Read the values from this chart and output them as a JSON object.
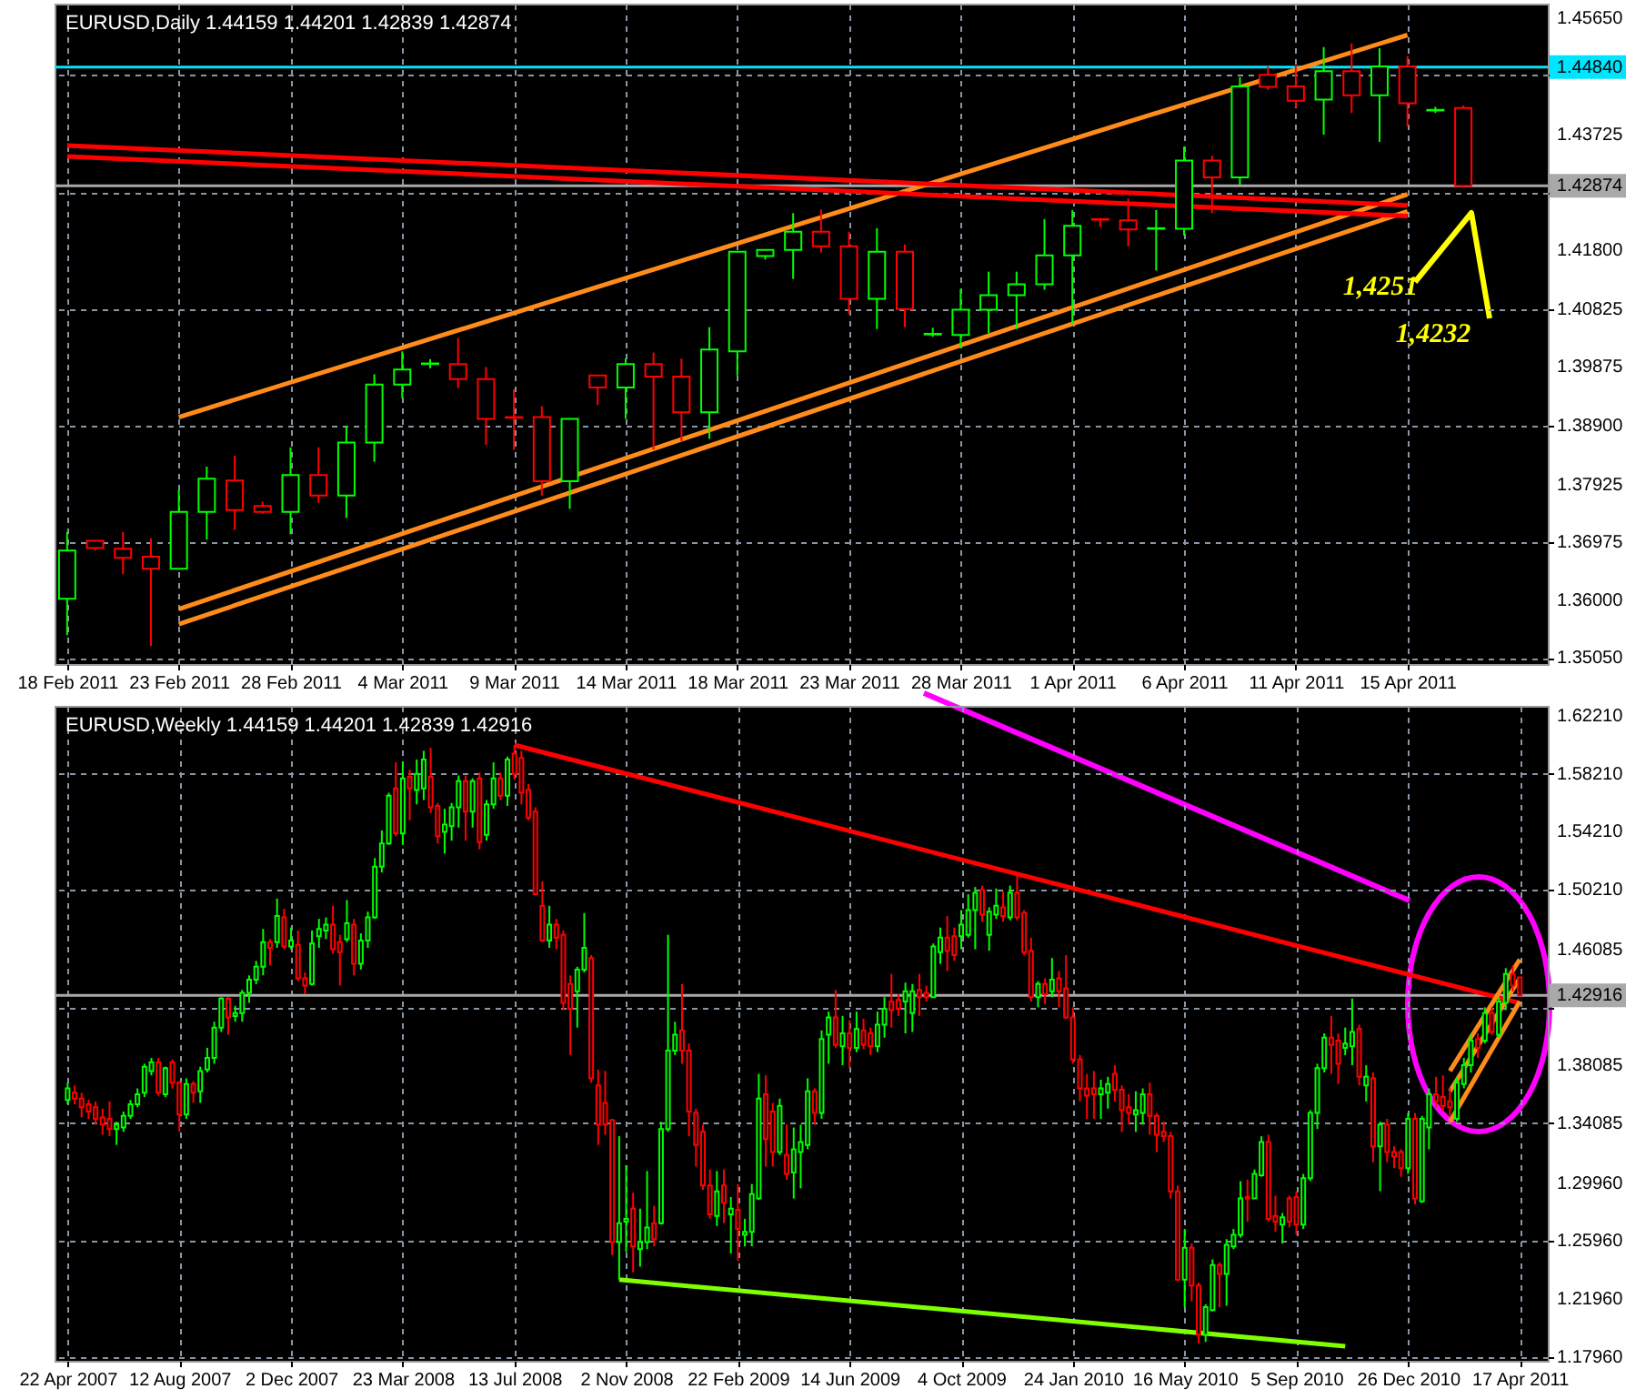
{
  "chart_data": [
    {
      "type": "candlestick",
      "title": "EURUSD,Daily  1.44159 1.44201 1.42839 1.42874",
      "categories": [
        "18 Feb 2011",
        null,
        null,
        null,
        "23 Feb 2011",
        null,
        null,
        null,
        "28 Feb 2011",
        null,
        null,
        null,
        "4 Mar 2011",
        null,
        null,
        null,
        "9 Mar 2011",
        null,
        null,
        null,
        "14 Mar 2011",
        null,
        null,
        null,
        "18 Mar 2011",
        null,
        null,
        null,
        "23 Mar 2011",
        null,
        null,
        null,
        "28 Mar 2011",
        null,
        null,
        null,
        "1 Apr 2011",
        null,
        null,
        null,
        "6 Apr 2011",
        null,
        null,
        null,
        "11 Apr 2011",
        null,
        null,
        null,
        "15 Apr 2011",
        null,
        null
      ],
      "ohlc": [
        [
          1.3603,
          1.3714,
          1.3543,
          1.3683
        ],
        [
          1.3699,
          1.3699,
          1.3683,
          1.3687
        ],
        [
          1.3686,
          1.3714,
          1.3644,
          1.3671
        ],
        [
          1.3673,
          1.3703,
          1.3525,
          1.3653
        ],
        [
          1.3653,
          1.3784,
          1.3653,
          1.3747
        ],
        [
          1.3747,
          1.3822,
          1.3701,
          1.3802
        ],
        [
          1.3799,
          1.384,
          1.3717,
          1.375
        ],
        [
          1.3757,
          1.3764,
          1.3744,
          1.3747
        ],
        [
          1.3747,
          1.3854,
          1.371,
          1.3808
        ],
        [
          1.3808,
          1.3854,
          1.3762,
          1.3774
        ],
        [
          1.3774,
          1.3889,
          1.3737,
          1.3862
        ],
        [
          1.3862,
          1.3975,
          1.383,
          1.3958
        ],
        [
          1.3958,
          1.4013,
          1.3935,
          1.3983
        ],
        [
          1.3992,
          1.4,
          1.3985,
          1.3993
        ],
        [
          1.3992,
          1.4035,
          1.3952,
          1.3967
        ],
        [
          1.3967,
          1.3987,
          1.3858,
          1.3901
        ],
        [
          1.3904,
          1.395,
          1.385,
          1.3903
        ],
        [
          1.3904,
          1.3922,
          1.3774,
          1.3798
        ],
        [
          1.3798,
          1.3901,
          1.3752,
          1.3901
        ],
        [
          1.3973,
          1.3973,
          1.3924,
          1.3953
        ],
        [
          1.3953,
          1.4001,
          1.3901,
          1.3992
        ],
        [
          1.3992,
          1.4011,
          1.385,
          1.3971
        ],
        [
          1.3971,
          1.4001,
          1.3864,
          1.3912
        ],
        [
          1.3912,
          1.4053,
          1.3868,
          1.4016
        ],
        [
          1.4013,
          1.4178,
          1.3973,
          1.4178
        ],
        [
          1.4171,
          1.4181,
          1.4165,
          1.4181
        ],
        [
          1.4181,
          1.4242,
          1.4133,
          1.4211
        ],
        [
          1.4211,
          1.4248,
          1.4177,
          1.4187
        ],
        [
          1.4187,
          1.4211,
          1.4075,
          1.41
        ],
        [
          1.41,
          1.4217,
          1.405,
          1.4178
        ],
        [
          1.4178,
          1.419,
          1.4053,
          1.4083
        ],
        [
          1.4041,
          1.4052,
          1.4037,
          1.4042
        ],
        [
          1.404,
          1.4116,
          1.4018,
          1.4082
        ],
        [
          1.4082,
          1.4145,
          1.4043,
          1.4106
        ],
        [
          1.4106,
          1.4145,
          1.405,
          1.4124
        ],
        [
          1.4124,
          1.4232,
          1.4115,
          1.4172
        ],
        [
          1.4172,
          1.4247,
          1.4058,
          1.4221
        ],
        [
          1.4232,
          1.4232,
          1.4219,
          1.4231
        ],
        [
          1.423,
          1.4266,
          1.4187,
          1.4215
        ],
        [
          1.4216,
          1.4247,
          1.4147,
          1.4217
        ],
        [
          1.4216,
          1.4352,
          1.4205,
          1.4329
        ],
        [
          1.4329,
          1.4337,
          1.4242,
          1.4301
        ],
        [
          1.4301,
          1.4467,
          1.4289,
          1.4452
        ],
        [
          1.4471,
          1.4485,
          1.4446,
          1.4451
        ],
        [
          1.4452,
          1.4487,
          1.4417,
          1.4428
        ],
        [
          1.443,
          1.4517,
          1.4372,
          1.4477
        ],
        [
          1.4477,
          1.4523,
          1.4408,
          1.4437
        ],
        [
          1.4437,
          1.4515,
          1.436,
          1.4485
        ],
        [
          1.4485,
          1.4502,
          1.4386,
          1.4424
        ],
        [
          1.4412,
          1.4418,
          1.4408,
          1.4413
        ],
        [
          1.44159,
          1.44201,
          1.42839,
          1.42874
        ]
      ],
      "colors": [
        "#00ff00",
        "#ff0000",
        "#ff0000",
        "#ff0000",
        "#00ff00",
        "#00ff00",
        "#ff0000",
        "#ff0000",
        "#00ff00",
        "#ff0000",
        "#00ff00",
        "#00ff00",
        "#00ff00",
        "#00ff00",
        "#ff0000",
        "#ff0000",
        "#ff0000",
        "#ff0000",
        "#00ff00",
        "#ff0000",
        "#00ff00",
        "#ff0000",
        "#ff0000",
        "#00ff00",
        "#00ff00",
        "#00ff00",
        "#00ff00",
        "#ff0000",
        "#ff0000",
        "#00ff00",
        "#ff0000",
        "#00ff00",
        "#00ff00",
        "#00ff00",
        "#00ff00",
        "#00ff00",
        "#00ff00",
        "#ff0000",
        "#ff0000",
        "#00ff00",
        "#00ff00",
        "#ff0000",
        "#00ff00",
        "#ff0000",
        "#ff0000",
        "#00ff00",
        "#ff0000",
        "#00ff00",
        "#ff0000",
        "#00ff00",
        "#ff0000"
      ],
      "ylim": [
        1.3495,
        1.4589
      ],
      "yticks": [
        {
          "value": 1.3505,
          "label": "1.35050"
        },
        {
          "value": 1.36,
          "label": "1.36000"
        },
        {
          "value": 1.36975,
          "label": "1.36975"
        },
        {
          "value": 1.37925,
          "label": "1.37925"
        },
        {
          "value": 1.389,
          "label": "1.38900"
        },
        {
          "value": 1.39875,
          "label": "1.39875"
        },
        {
          "value": 1.40825,
          "label": "1.40825"
        },
        {
          "value": 1.418,
          "label": "1.41800"
        },
        {
          "value": 1.4275,
          "label": null
        },
        {
          "value": 1.43725,
          "label": "1.43725"
        },
        {
          "value": 1.447,
          "label": null
        },
        {
          "value": 1.4565,
          "label": "1.45650"
        }
      ],
      "grid": true,
      "ref_lines": [
        {
          "axis": "y",
          "value": 1.4484,
          "label": "1.44840",
          "color": "#00e5ff"
        },
        {
          "axis": "y",
          "value": 1.42874,
          "label": "1.42874",
          "color": "#a9a9a9"
        }
      ],
      "series": [
        {
          "type": "line",
          "color": "#ff8c1a",
          "x": [
            "23 Feb 2011",
            "15 Apr 2011"
          ],
          "values": [
            1.3904,
            1.4537
          ]
        },
        {
          "type": "line",
          "color": "#ff8c1a",
          "x": [
            "23 Feb 2011",
            "15 Apr 2011"
          ],
          "values": [
            1.3586,
            1.4273
          ]
        },
        {
          "type": "line",
          "color": "#ff8c1a",
          "x": [
            "23 Feb 2011",
            "15 Apr 2011"
          ],
          "values": [
            1.3561,
            1.4245
          ]
        },
        {
          "type": "line",
          "color": "#ff0000",
          "x": [
            "18 Feb 2011",
            "15 Apr 2011"
          ],
          "values": [
            1.4354,
            1.4255
          ]
        },
        {
          "type": "line",
          "color": "#ff0000",
          "x": [
            "18 Feb 2011",
            "15 Apr 2011"
          ],
          "values": [
            1.4336,
            1.4237
          ]
        }
      ],
      "annotations": [
        "1,4251",
        "1,4232"
      ]
    },
    {
      "type": "candlestick",
      "title": "EURUSD,Weekly  1.44159 1.44201 1.42839 1.42916",
      "x": [
        "2007-04-22",
        "2007-04-29",
        "2007-05-06",
        "2007-05-13",
        "2007-05-20",
        "2007-05-27",
        "2007-06-03",
        "2007-06-10",
        "2007-06-17",
        "2007-06-24",
        "2007-07-01",
        "2007-07-08",
        "2007-07-15",
        "2007-07-22",
        "2007-07-29",
        "2007-08-05",
        "2007-08-12",
        "2007-08-19",
        "2007-08-26",
        "2007-09-02",
        "2007-09-09",
        "2007-09-16",
        "2007-09-23",
        "2007-09-30",
        "2007-10-07",
        "2007-10-14",
        "2007-10-21",
        "2007-10-28",
        "2007-11-04",
        "2007-11-11",
        "2007-11-18",
        "2007-11-25",
        "2007-12-02",
        "2007-12-09",
        "2007-12-16",
        "2007-12-23",
        "2007-12-30",
        "2008-01-06",
        "2008-01-13",
        "2008-01-20",
        "2008-01-27",
        "2008-02-03",
        "2008-02-10",
        "2008-02-17",
        "2008-02-24",
        "2008-03-02",
        "2008-03-09",
        "2008-03-16",
        "2008-03-23",
        "2008-03-30",
        "2008-04-06",
        "2008-04-13",
        "2008-04-20",
        "2008-04-27",
        "2008-05-04",
        "2008-05-11",
        "2008-05-18",
        "2008-05-25",
        "2008-06-01",
        "2008-06-08",
        "2008-06-15",
        "2008-06-22",
        "2008-06-29",
        "2008-07-06",
        "2008-07-13",
        "2008-07-20",
        "2008-07-27",
        "2008-08-03",
        "2008-08-10",
        "2008-08-17",
        "2008-08-24",
        "2008-08-31",
        "2008-09-07",
        "2008-09-14",
        "2008-09-21",
        "2008-09-28",
        "2008-10-05",
        "2008-10-12",
        "2008-10-19",
        "2008-10-26",
        "2008-11-02",
        "2008-11-09",
        "2008-11-16",
        "2008-11-23",
        "2008-11-30",
        "2008-12-07",
        "2008-12-14",
        "2008-12-21",
        "2008-12-28",
        "2009-01-04",
        "2009-01-11",
        "2009-01-18",
        "2009-01-25",
        "2009-02-01",
        "2009-02-08",
        "2009-02-15",
        "2009-02-22",
        "2009-03-01",
        "2009-03-08",
        "2009-03-15",
        "2009-03-22",
        "2009-03-29",
        "2009-04-05",
        "2009-04-12",
        "2009-04-19",
        "2009-04-26",
        "2009-05-03",
        "2009-05-10",
        "2009-05-17",
        "2009-05-24",
        "2009-05-31",
        "2009-06-07",
        "2009-06-14",
        "2009-06-21",
        "2009-06-28",
        "2009-07-05",
        "2009-07-12",
        "2009-07-19",
        "2009-07-26",
        "2009-08-02",
        "2009-08-09",
        "2009-08-16",
        "2009-08-23",
        "2009-08-30",
        "2009-09-06",
        "2009-09-13",
        "2009-09-20",
        "2009-09-27",
        "2009-10-04",
        "2009-10-11",
        "2009-10-18",
        "2009-10-25",
        "2009-11-01",
        "2009-11-08",
        "2009-11-15",
        "2009-11-22",
        "2009-11-29",
        "2009-12-06",
        "2009-12-13",
        "2009-12-20",
        "2009-12-27",
        "2010-01-03",
        "2010-01-10",
        "2010-01-17",
        "2010-01-24",
        "2010-01-31",
        "2010-02-07",
        "2010-02-14",
        "2010-02-21",
        "2010-02-28",
        "2010-03-07",
        "2010-03-14",
        "2010-03-21",
        "2010-03-28",
        "2010-04-04",
        "2010-04-11",
        "2010-04-18",
        "2010-04-25",
        "2010-05-02",
        "2010-05-09",
        "2010-05-16",
        "2010-05-23",
        "2010-05-30",
        "2010-06-06",
        "2010-06-13",
        "2010-06-20",
        "2010-06-27",
        "2010-07-04",
        "2010-07-11",
        "2010-07-18",
        "2010-07-25",
        "2010-08-01",
        "2010-08-08",
        "2010-08-15",
        "2010-08-22",
        "2010-08-29",
        "2010-09-05",
        "2010-09-12",
        "2010-09-19",
        "2010-09-26",
        "2010-10-03",
        "2010-10-10",
        "2010-10-17",
        "2010-10-24",
        "2010-10-31",
        "2010-11-07",
        "2010-11-14",
        "2010-11-21",
        "2010-11-28",
        "2010-12-05",
        "2010-12-12",
        "2010-12-19",
        "2010-12-26",
        "2011-01-02",
        "2011-01-09",
        "2011-01-16",
        "2011-01-23",
        "2011-01-30",
        "2011-02-06",
        "2011-02-13",
        "2011-02-20",
        "2011-02-27",
        "2011-03-06",
        "2011-03-13",
        "2011-03-20",
        "2011-03-27",
        "2011-04-03",
        "2011-04-10",
        "2011-04-17"
      ],
      "ohlc": [
        [
          1.357,
          1.369,
          1.354,
          1.365
        ],
        [
          1.362,
          1.367,
          1.354,
          1.358
        ],
        [
          1.358,
          1.362,
          1.345,
          1.352
        ],
        [
          1.354,
          1.357,
          1.344,
          1.349
        ],
        [
          1.352,
          1.356,
          1.34,
          1.344
        ],
        [
          1.345,
          1.351,
          1.333,
          1.34
        ],
        [
          1.344,
          1.356,
          1.332,
          1.337
        ],
        [
          1.337,
          1.342,
          1.326,
          1.34
        ],
        [
          1.338,
          1.349,
          1.335,
          1.346
        ],
        [
          1.346,
          1.357,
          1.344,
          1.354
        ],
        [
          1.354,
          1.365,
          1.352,
          1.361
        ],
        [
          1.362,
          1.382,
          1.359,
          1.38
        ],
        [
          1.377,
          1.386,
          1.374,
          1.383
        ],
        [
          1.383,
          1.386,
          1.36,
          1.362
        ],
        [
          1.361,
          1.38,
          1.359,
          1.379
        ],
        [
          1.383,
          1.385,
          1.365,
          1.369
        ],
        [
          1.369,
          1.37,
          1.335,
          1.347
        ],
        [
          1.347,
          1.372,
          1.344,
          1.368
        ],
        [
          1.368,
          1.37,
          1.355,
          1.362
        ],
        [
          1.363,
          1.38,
          1.355,
          1.377
        ],
        [
          1.378,
          1.393,
          1.376,
          1.386
        ],
        [
          1.386,
          1.411,
          1.382,
          1.407
        ],
        [
          1.407,
          1.428,
          1.404,
          1.427
        ],
        [
          1.427,
          1.428,
          1.402,
          1.414
        ],
        [
          1.415,
          1.422,
          1.411,
          1.417
        ],
        [
          1.417,
          1.433,
          1.411,
          1.431
        ],
        [
          1.431,
          1.443,
          1.424,
          1.44
        ],
        [
          1.44,
          1.453,
          1.437,
          1.449
        ],
        [
          1.449,
          1.475,
          1.443,
          1.466
        ],
        [
          1.466,
          1.468,
          1.45,
          1.462
        ],
        [
          1.466,
          1.496,
          1.462,
          1.484
        ],
        [
          1.483,
          1.489,
          1.461,
          1.463
        ],
        [
          1.463,
          1.476,
          1.461,
          1.467
        ],
        [
          1.464,
          1.474,
          1.439,
          1.441
        ],
        [
          1.441,
          1.445,
          1.43,
          1.436
        ],
        [
          1.437,
          1.474,
          1.436,
          1.465
        ],
        [
          1.47,
          1.482,
          1.462,
          1.475
        ],
        [
          1.474,
          1.483,
          1.468,
          1.478
        ],
        [
          1.478,
          1.491,
          1.458,
          1.461
        ],
        [
          1.466,
          1.471,
          1.436,
          1.459
        ],
        [
          1.468,
          1.495,
          1.466,
          1.479
        ],
        [
          1.478,
          1.482,
          1.443,
          1.451
        ],
        [
          1.451,
          1.472,
          1.447,
          1.467
        ],
        [
          1.467,
          1.487,
          1.462,
          1.483
        ],
        [
          1.483,
          1.524,
          1.482,
          1.518
        ],
        [
          1.518,
          1.543,
          1.514,
          1.534
        ],
        [
          1.534,
          1.569,
          1.533,
          1.567
        ],
        [
          1.572,
          1.59,
          1.539,
          1.541
        ],
        [
          1.541,
          1.59,
          1.533,
          1.579
        ],
        [
          1.58,
          1.585,
          1.55,
          1.572
        ],
        [
          1.571,
          1.592,
          1.561,
          1.582
        ],
        [
          1.572,
          1.598,
          1.564,
          1.592
        ],
        [
          1.58,
          1.6,
          1.555,
          1.559
        ],
        [
          1.56,
          1.562,
          1.534,
          1.539
        ],
        [
          1.542,
          1.558,
          1.527,
          1.547
        ],
        [
          1.546,
          1.562,
          1.536,
          1.559
        ],
        [
          1.559,
          1.581,
          1.545,
          1.577
        ],
        [
          1.577,
          1.581,
          1.536,
          1.556
        ],
        [
          1.556,
          1.579,
          1.545,
          1.577
        ],
        [
          1.579,
          1.583,
          1.53,
          1.535
        ],
        [
          1.54,
          1.564,
          1.536,
          1.561
        ],
        [
          1.561,
          1.59,
          1.558,
          1.579
        ],
        [
          1.579,
          1.583,
          1.564,
          1.567
        ],
        [
          1.567,
          1.594,
          1.56,
          1.592
        ],
        [
          1.596,
          1.602,
          1.578,
          1.582
        ],
        [
          1.593,
          1.598,
          1.561,
          1.569
        ],
        [
          1.571,
          1.575,
          1.55,
          1.552
        ],
        [
          1.556,
          1.559,
          1.499,
          1.499
        ],
        [
          1.491,
          1.508,
          1.466,
          1.467
        ],
        [
          1.467,
          1.491,
          1.462,
          1.478
        ],
        [
          1.478,
          1.482,
          1.461,
          1.469
        ],
        [
          1.471,
          1.474,
          1.419,
          1.424
        ],
        [
          1.437,
          1.443,
          1.388,
          1.42
        ],
        [
          1.432,
          1.449,
          1.407,
          1.447
        ],
        [
          1.447,
          1.486,
          1.445,
          1.462
        ],
        [
          1.455,
          1.457,
          1.369,
          1.372
        ],
        [
          1.367,
          1.378,
          1.326,
          1.34
        ],
        [
          1.355,
          1.377,
          1.333,
          1.34
        ],
        [
          1.343,
          1.344,
          1.25,
          1.259
        ],
        [
          1.259,
          1.332,
          1.233,
          1.272
        ],
        [
          1.273,
          1.312,
          1.252,
          1.275
        ],
        [
          1.282,
          1.293,
          1.238,
          1.256
        ],
        [
          1.254,
          1.282,
          1.242,
          1.259
        ],
        [
          1.259,
          1.308,
          1.254,
          1.269
        ],
        [
          1.272,
          1.284,
          1.256,
          1.261
        ],
        [
          1.272,
          1.342,
          1.271,
          1.337
        ],
        [
          1.337,
          1.471,
          1.335,
          1.391
        ],
        [
          1.391,
          1.411,
          1.388,
          1.402
        ],
        [
          1.405,
          1.437,
          1.382,
          1.391
        ],
        [
          1.391,
          1.396,
          1.332,
          1.349
        ],
        [
          1.348,
          1.351,
          1.311,
          1.326
        ],
        [
          1.335,
          1.34,
          1.295,
          1.298
        ],
        [
          1.298,
          1.309,
          1.275,
          1.278
        ],
        [
          1.277,
          1.308,
          1.27,
          1.294
        ],
        [
          1.298,
          1.309,
          1.272,
          1.286
        ],
        [
          1.278,
          1.29,
          1.251,
          1.282
        ],
        [
          1.281,
          1.299,
          1.246,
          1.268
        ],
        [
          1.264,
          1.275,
          1.256,
          1.266
        ],
        [
          1.266,
          1.299,
          1.256,
          1.292
        ],
        [
          1.289,
          1.375,
          1.288,
          1.358
        ],
        [
          1.361,
          1.374,
          1.311,
          1.33
        ],
        [
          1.349,
          1.355,
          1.311,
          1.321
        ],
        [
          1.321,
          1.358,
          1.319,
          1.353
        ],
        [
          1.319,
          1.34,
          1.302,
          1.306
        ],
        [
          1.307,
          1.338,
          1.289,
          1.323
        ],
        [
          1.321,
          1.34,
          1.296,
          1.328
        ],
        [
          1.326,
          1.372,
          1.323,
          1.363
        ],
        [
          1.363,
          1.365,
          1.34,
          1.348
        ],
        [
          1.348,
          1.405,
          1.344,
          1.399
        ],
        [
          1.402,
          1.418,
          1.382,
          1.414
        ],
        [
          1.414,
          1.433,
          1.393,
          1.395
        ],
        [
          1.394,
          1.415,
          1.381,
          1.403
        ],
        [
          1.403,
          1.412,
          1.379,
          1.393
        ],
        [
          1.393,
          1.418,
          1.39,
          1.406
        ],
        [
          1.405,
          1.413,
          1.392,
          1.395
        ],
        [
          1.403,
          1.407,
          1.388,
          1.394
        ],
        [
          1.394,
          1.418,
          1.39,
          1.409
        ],
        [
          1.409,
          1.428,
          1.4,
          1.42
        ],
        [
          1.425,
          1.444,
          1.407,
          1.419
        ],
        [
          1.426,
          1.43,
          1.415,
          1.42
        ],
        [
          1.425,
          1.438,
          1.403,
          1.432
        ],
        [
          1.417,
          1.437,
          1.404,
          1.432
        ],
        [
          1.433,
          1.444,
          1.415,
          1.428
        ],
        [
          1.431,
          1.436,
          1.425,
          1.428
        ],
        [
          1.428,
          1.465,
          1.428,
          1.463
        ],
        [
          1.459,
          1.476,
          1.451,
          1.469
        ],
        [
          1.469,
          1.484,
          1.446,
          1.46
        ],
        [
          1.47,
          1.476,
          1.453,
          1.457
        ],
        [
          1.47,
          1.488,
          1.461,
          1.478
        ],
        [
          1.471,
          1.499,
          1.469,
          1.488
        ],
        [
          1.488,
          1.504,
          1.461,
          1.5
        ],
        [
          1.502,
          1.505,
          1.48,
          1.485
        ],
        [
          1.471,
          1.49,
          1.46,
          1.487
        ],
        [
          1.485,
          1.503,
          1.482,
          1.491
        ],
        [
          1.49,
          1.501,
          1.48,
          1.484
        ],
        [
          1.483,
          1.505,
          1.481,
          1.5
        ],
        [
          1.5,
          1.513,
          1.481,
          1.483
        ],
        [
          1.486,
          1.488,
          1.457,
          1.459
        ],
        [
          1.46,
          1.469,
          1.425,
          1.428
        ],
        [
          1.428,
          1.439,
          1.421,
          1.437
        ],
        [
          1.437,
          1.441,
          1.423,
          1.43
        ],
        [
          1.432,
          1.455,
          1.428,
          1.44
        ],
        [
          1.441,
          1.446,
          1.421,
          1.432
        ],
        [
          1.434,
          1.457,
          1.413,
          1.414
        ],
        [
          1.414,
          1.421,
          1.382,
          1.385
        ],
        [
          1.385,
          1.388,
          1.356,
          1.365
        ],
        [
          1.365,
          1.375,
          1.344,
          1.36
        ],
        [
          1.365,
          1.377,
          1.344,
          1.361
        ],
        [
          1.361,
          1.371,
          1.344,
          1.365
        ],
        [
          1.362,
          1.373,
          1.351,
          1.368
        ],
        [
          1.375,
          1.381,
          1.356,
          1.364
        ],
        [
          1.364,
          1.367,
          1.335,
          1.35
        ],
        [
          1.352,
          1.361,
          1.34,
          1.348
        ],
        [
          1.347,
          1.363,
          1.335,
          1.35
        ],
        [
          1.348,
          1.365,
          1.34,
          1.361
        ],
        [
          1.361,
          1.369,
          1.333,
          1.346
        ],
        [
          1.346,
          1.348,
          1.321,
          1.333
        ],
        [
          1.335,
          1.342,
          1.328,
          1.332
        ],
        [
          1.332,
          1.335,
          1.289,
          1.294
        ],
        [
          1.294,
          1.298,
          1.232,
          1.233
        ],
        [
          1.233,
          1.268,
          1.214,
          1.255
        ],
        [
          1.255,
          1.258,
          1.218,
          1.229
        ],
        [
          1.229,
          1.231,
          1.189,
          1.195
        ],
        [
          1.195,
          1.216,
          1.19,
          1.214
        ],
        [
          1.212,
          1.247,
          1.211,
          1.243
        ],
        [
          1.243,
          1.245,
          1.214,
          1.237
        ],
        [
          1.237,
          1.261,
          1.215,
          1.257
        ],
        [
          1.256,
          1.268,
          1.254,
          1.264
        ],
        [
          1.264,
          1.301,
          1.262,
          1.289
        ],
        [
          1.29,
          1.302,
          1.273,
          1.289
        ],
        [
          1.289,
          1.309,
          1.289,
          1.306
        ],
        [
          1.305,
          1.332,
          1.304,
          1.328
        ],
        [
          1.328,
          1.333,
          1.273,
          1.275
        ],
        [
          1.277,
          1.291,
          1.266,
          1.273
        ],
        [
          1.271,
          1.279,
          1.258,
          1.276
        ],
        [
          1.289,
          1.291,
          1.269,
          1.273
        ],
        [
          1.29,
          1.294,
          1.264,
          1.271
        ],
        [
          1.271,
          1.306,
          1.268,
          1.303
        ],
        [
          1.303,
          1.35,
          1.301,
          1.348
        ],
        [
          1.348,
          1.382,
          1.337,
          1.379
        ],
        [
          1.379,
          1.403,
          1.376,
          1.4
        ],
        [
          1.4,
          1.415,
          1.375,
          1.395
        ],
        [
          1.398,
          1.403,
          1.368,
          1.382
        ],
        [
          1.393,
          1.407,
          1.388,
          1.396
        ],
        [
          1.394,
          1.427,
          1.381,
          1.404
        ],
        [
          1.406,
          1.409,
          1.367,
          1.373
        ],
        [
          1.367,
          1.381,
          1.356,
          1.373
        ],
        [
          1.372,
          1.376,
          1.314,
          1.325
        ],
        [
          1.325,
          1.342,
          1.294,
          1.34
        ],
        [
          1.34,
          1.344,
          1.314,
          1.321
        ],
        [
          1.321,
          1.325,
          1.31,
          1.318
        ],
        [
          1.321,
          1.323,
          1.304,
          1.31
        ],
        [
          1.31,
          1.348,
          1.306,
          1.344
        ],
        [
          1.344,
          1.348,
          1.285,
          1.289
        ],
        [
          1.287,
          1.346,
          1.286,
          1.344
        ],
        [
          1.338,
          1.365,
          1.323,
          1.361
        ],
        [
          1.361,
          1.373,
          1.352,
          1.356
        ],
        [
          1.359,
          1.374,
          1.349,
          1.353
        ],
        [
          1.356,
          1.365,
          1.346,
          1.352
        ],
        [
          1.344,
          1.373,
          1.342,
          1.369
        ],
        [
          1.368,
          1.386,
          1.365,
          1.381
        ],
        [
          1.381,
          1.402,
          1.376,
          1.398
        ],
        [
          1.399,
          1.403,
          1.386,
          1.393
        ],
        [
          1.398,
          1.421,
          1.396,
          1.417
        ],
        [
          1.417,
          1.421,
          1.402,
          1.404
        ],
        [
          1.402,
          1.428,
          1.4,
          1.425
        ],
        [
          1.424,
          1.448,
          1.419,
          1.444
        ],
        [
          1.444,
          1.45,
          1.432,
          1.436
        ],
        [
          1.44159,
          1.44201,
          1.42839,
          1.42916
        ]
      ],
      "colors": [
        "#00ff00",
        "#ff0000",
        "#ff0000",
        "#ff0000",
        "#ff0000",
        "#ff0000",
        "#ff0000",
        "#00ff00",
        "#00ff00",
        "#00ff00",
        "#00ff00",
        "#00ff00",
        "#00ff00",
        "#ff0000",
        "#00ff00",
        "#ff0000",
        "#ff0000",
        "#00ff00",
        "#ff0000",
        "#00ff00",
        "#00ff00",
        "#00ff00",
        "#00ff00",
        "#ff0000",
        "#00ff00",
        "#00ff00",
        "#00ff00",
        "#00ff00",
        "#00ff00",
        "#ff0000",
        "#00ff00",
        "#ff0000",
        "#00ff00",
        "#ff0000",
        "#ff0000",
        "#00ff00",
        "#00ff00",
        "#00ff00",
        "#ff0000",
        "#ff0000",
        "#00ff00",
        "#ff0000",
        "#00ff00",
        "#00ff00",
        "#00ff00",
        "#00ff00",
        "#00ff00",
        "#ff0000",
        "#00ff00",
        "#ff0000",
        "#00ff00",
        "#00ff00",
        "#ff0000",
        "#ff0000",
        "#00ff00",
        "#00ff00",
        "#00ff00",
        "#ff0000",
        "#00ff00",
        "#ff0000",
        "#00ff00",
        "#00ff00",
        "#ff0000",
        "#00ff00",
        "#ff0000",
        "#ff0000",
        "#ff0000",
        "#ff0000",
        "#ff0000",
        "#00ff00",
        "#ff0000",
        "#ff0000",
        "#ff0000",
        "#00ff00",
        "#00ff00",
        "#ff0000",
        "#ff0000",
        "#ff0000",
        "#ff0000",
        "#00ff00",
        "#00ff00",
        "#ff0000",
        "#00ff00",
        "#00ff00",
        "#ff0000",
        "#00ff00",
        "#00ff00",
        "#00ff00",
        "#ff0000",
        "#ff0000",
        "#ff0000",
        "#ff0000",
        "#ff0000",
        "#00ff00",
        "#ff0000",
        "#00ff00",
        "#ff0000",
        "#00ff00",
        "#00ff00",
        "#00ff00",
        "#ff0000",
        "#ff0000",
        "#00ff00",
        "#ff0000",
        "#00ff00",
        "#00ff00",
        "#00ff00",
        "#ff0000",
        "#00ff00",
        "#00ff00",
        "#ff0000",
        "#00ff00",
        "#ff0000",
        "#00ff00",
        "#ff0000",
        "#ff0000",
        "#00ff00",
        "#00ff00",
        "#ff0000",
        "#ff0000",
        "#00ff00",
        "#00ff00",
        "#ff0000",
        "#ff0000",
        "#00ff00",
        "#00ff00",
        "#ff0000",
        "#ff0000",
        "#00ff00",
        "#00ff00",
        "#00ff00",
        "#ff0000",
        "#00ff00",
        "#00ff00",
        "#ff0000",
        "#00ff00",
        "#ff0000",
        "#ff0000",
        "#ff0000",
        "#00ff00",
        "#ff0000",
        "#00ff00",
        "#ff0000",
        "#ff0000",
        "#ff0000",
        "#ff0000",
        "#ff0000",
        "#ff0000",
        "#00ff00",
        "#00ff00",
        "#ff0000",
        "#ff0000",
        "#ff0000",
        "#00ff00",
        "#00ff00",
        "#ff0000",
        "#ff0000",
        "#ff0000",
        "#ff0000",
        "#ff0000",
        "#00ff00",
        "#ff0000",
        "#ff0000",
        "#00ff00",
        "#00ff00",
        "#ff0000",
        "#00ff00",
        "#00ff00",
        "#00ff00",
        "#ff0000",
        "#00ff00",
        "#00ff00",
        "#ff0000",
        "#ff0000",
        "#00ff00",
        "#ff0000",
        "#ff0000",
        "#00ff00",
        "#00ff00",
        "#00ff00",
        "#00ff00",
        "#ff0000",
        "#ff0000",
        "#00ff00",
        "#00ff00",
        "#ff0000",
        "#00ff00",
        "#ff0000",
        "#00ff00",
        "#ff0000",
        "#ff0000",
        "#ff0000",
        "#00ff00",
        "#ff0000",
        "#00ff00",
        "#00ff00",
        "#ff0000",
        "#ff0000",
        "#ff0000",
        "#00ff00",
        "#00ff00",
        "#00ff00",
        "#ff0000",
        "#00ff00",
        "#ff0000",
        "#00ff00",
        "#00ff00",
        "#ff0000",
        "#ff0000"
      ],
      "xlim": [
        "2007-04-18",
        "2011-05-06"
      ],
      "xticks": [
        {
          "value": "2007-04-22",
          "label": "22 Apr 2007"
        },
        {
          "value": "2007-08-12",
          "label": "12 Aug 2007"
        },
        {
          "value": "2007-12-02",
          "label": "2 Dec 2007"
        },
        {
          "value": "2008-03-23",
          "label": "23 Mar 2008"
        },
        {
          "value": "2008-07-13",
          "label": "13 Jul 2008"
        },
        {
          "value": "2008-11-02",
          "label": "2 Nov 2008"
        },
        {
          "value": "2009-02-22",
          "label": "22 Feb 2009"
        },
        {
          "value": "2009-06-14",
          "label": "14 Jun 2009"
        },
        {
          "value": "2009-10-04",
          "label": "4 Oct 2009"
        },
        {
          "value": "2010-01-24",
          "label": "24 Jan 2010"
        },
        {
          "value": "2010-05-16",
          "label": "16 May 2010"
        },
        {
          "value": "2010-09-05",
          "label": "5 Sep 2010"
        },
        {
          "value": "2010-12-26",
          "label": "26 Dec 2010"
        },
        {
          "value": "2011-04-17",
          "label": "17 Apr 2011"
        }
      ],
      "ylim": [
        1.177,
        1.629
      ],
      "yticks": [
        {
          "value": 1.1796,
          "label": "1.17960"
        },
        {
          "value": 1.2196,
          "label": "1.21960"
        },
        {
          "value": 1.2596,
          "label": "1.25960"
        },
        {
          "value": 1.2996,
          "label": "1.29960"
        },
        {
          "value": 1.34085,
          "label": "1.34085"
        },
        {
          "value": 1.38085,
          "label": "1.38085"
        },
        {
          "value": 1.42085,
          "label": null
        },
        {
          "value": 1.46085,
          "label": "1.46085"
        },
        {
          "value": 1.5021,
          "label": "1.50210"
        },
        {
          "value": 1.5421,
          "label": "1.54210"
        },
        {
          "value": 1.5821,
          "label": "1.58210"
        },
        {
          "value": 1.6221,
          "label": "1.62210"
        }
      ],
      "grid": true,
      "ref_lines": [
        {
          "axis": "y",
          "value": 1.42916,
          "label": "1.42916",
          "color": "#a9a9a9"
        }
      ],
      "series": [
        {
          "type": "line",
          "color": "#ff0000",
          "x": [
            "2008-07-13",
            "2011-04-17"
          ],
          "values": [
            1.602,
            1.424
          ]
        },
        {
          "type": "line",
          "color": "#7fff00",
          "x": [
            "2008-10-26",
            "2010-10-24"
          ],
          "values": [
            1.233,
            1.187
          ]
        },
        {
          "type": "line",
          "color": "#ff8c1a",
          "x": [
            "2011-02-06",
            "2011-04-17"
          ],
          "values": [
            1.377,
            1.454
          ]
        },
        {
          "type": "line",
          "color": "#ff8c1a",
          "x": [
            "2011-02-06",
            "2011-04-17"
          ],
          "values": [
            1.363,
            1.441
          ]
        },
        {
          "type": "line",
          "color": "#ff8c1a",
          "x": [
            "2011-02-06",
            "2011-04-17"
          ],
          "values": [
            1.342,
            1.425
          ]
        }
      ]
    }
  ]
}
